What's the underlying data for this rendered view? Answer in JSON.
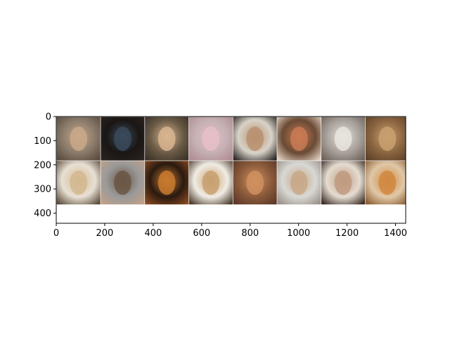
{
  "chart_data": {
    "type": "heatmap",
    "title": "",
    "xlabel": "",
    "ylabel": "",
    "grid": false,
    "xlim": [
      0,
      1442
    ],
    "ylim": [
      442,
      0
    ],
    "xticks": [
      0,
      200,
      400,
      600,
      800,
      1000,
      1200,
      1400
    ],
    "yticks": [
      0,
      100,
      200,
      300,
      400
    ],
    "grid_layout": {
      "rows": 2,
      "cols": 8,
      "cell_size": 180,
      "padding": 2
    },
    "tiles": [
      {
        "row": 0,
        "col": 0,
        "colors": [
          "#8a7a6a",
          "#c9a88a",
          "#5a4a3e"
        ]
      },
      {
        "row": 0,
        "col": 1,
        "colors": [
          "#1a1614",
          "#3a4a5a",
          "#2a2420"
        ]
      },
      {
        "row": 0,
        "col": 2,
        "colors": [
          "#6a5a46",
          "#d8b490",
          "#3a3026"
        ]
      },
      {
        "row": 0,
        "col": 3,
        "colors": [
          "#c4b0b4",
          "#e6c0c8",
          "#b08a90"
        ]
      },
      {
        "row": 0,
        "col": 4,
        "colors": [
          "#d8d2c8",
          "#b89070",
          "#2a2422"
        ]
      },
      {
        "row": 0,
        "col": 5,
        "colors": [
          "#6a4a34",
          "#c87a54",
          "#e0d0c0"
        ]
      },
      {
        "row": 0,
        "col": 6,
        "colors": [
          "#a8a09a",
          "#e8e4de",
          "#6a625a"
        ]
      },
      {
        "row": 0,
        "col": 7,
        "colors": [
          "#8a6440",
          "#c8a070",
          "#5a4028"
        ]
      },
      {
        "row": 1,
        "col": 0,
        "colors": [
          "#e8e0d4",
          "#d2b890",
          "#5a4a38"
        ]
      },
      {
        "row": 1,
        "col": 1,
        "colors": [
          "#9a9a9a",
          "#6a5644",
          "#c0a088"
        ]
      },
      {
        "row": 1,
        "col": 2,
        "colors": [
          "#2a1a10",
          "#c87a30",
          "#8a4a20"
        ]
      },
      {
        "row": 1,
        "col": 3,
        "colors": [
          "#f0ece4",
          "#c8a070",
          "#4a3a2a"
        ]
      },
      {
        "row": 1,
        "col": 4,
        "colors": [
          "#8a5a3a",
          "#d09060",
          "#5a3828"
        ]
      },
      {
        "row": 1,
        "col": 5,
        "colors": [
          "#d8d8d4",
          "#c8a888",
          "#9a9088"
        ]
      },
      {
        "row": 1,
        "col": 6,
        "colors": [
          "#e4dcd0",
          "#c09a80",
          "#3a2a24"
        ]
      },
      {
        "row": 1,
        "col": 7,
        "colors": [
          "#e0c8a8",
          "#d08840",
          "#8a5a30"
        ]
      }
    ]
  }
}
